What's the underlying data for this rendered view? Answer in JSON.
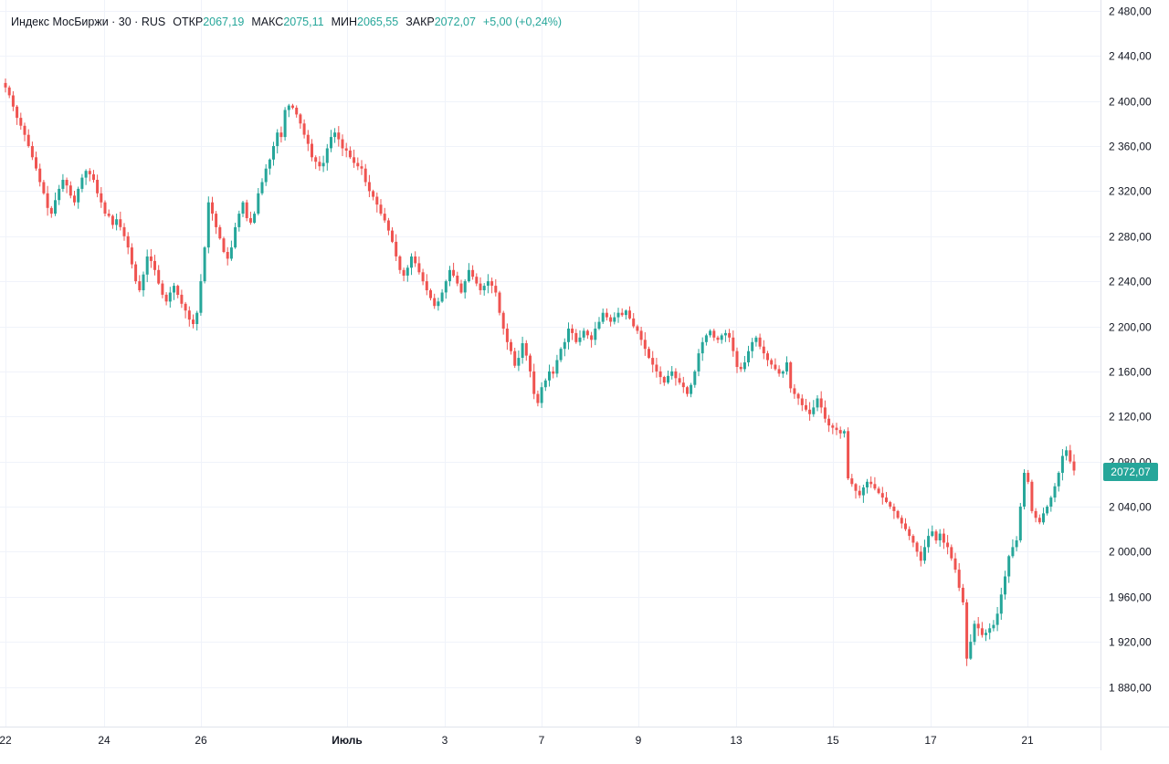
{
  "legend": {
    "symbol": "Индекс МосБиржи · 30 · RUS",
    "open_label": "ОТКР",
    "open_value": "2067,19",
    "high_label": "МАКС",
    "high_value": "2075,11",
    "low_label": "МИН",
    "low_value": "2065,55",
    "close_label": "ЗАКР",
    "close_value": "2072,07",
    "change": "+5,00 (+0,24%)"
  },
  "price_tag": "2072,07",
  "colors": {
    "up": "#26a69a",
    "down": "#ef5350",
    "grid": "#f0f3fa",
    "axis_text": "#131722",
    "axis_line": "#e0e3eb"
  },
  "chart_data": {
    "type": "candlestick",
    "title": "Индекс МосБиржи · 30 · RUS",
    "interval": "30",
    "ylim": [
      1855,
      2490
    ],
    "yticks": [
      "2 480,00",
      "2 440,00",
      "2 400,00",
      "2 360,00",
      "2 320,00",
      "2 280,00",
      "2 240,00",
      "2 200,00",
      "2 160,00",
      "2 120,00",
      "2 080,00",
      "2 040,00",
      "2 000,00",
      "1 960,00",
      "1 920,00",
      "1 880,00"
    ],
    "ytick_values": [
      2480,
      2440,
      2400,
      2360,
      2320,
      2280,
      2240,
      2200,
      2160,
      2120,
      2080,
      2040,
      2000,
      1960,
      1920,
      1880
    ],
    "xticks": [
      "22",
      "24",
      "26",
      "Июль",
      "3",
      "7",
      "9",
      "13",
      "15",
      "17",
      "21"
    ],
    "grid": true,
    "last_price": 2072.07,
    "closes": [
      2412,
      2405,
      2395,
      2385,
      2378,
      2370,
      2360,
      2350,
      2340,
      2328,
      2318,
      2305,
      2300,
      2312,
      2322,
      2330,
      2325,
      2316,
      2310,
      2322,
      2332,
      2338,
      2335,
      2330,
      2318,
      2310,
      2300,
      2298,
      2290,
      2295,
      2288,
      2280,
      2270,
      2255,
      2240,
      2232,
      2246,
      2262,
      2258,
      2250,
      2238,
      2228,
      2222,
      2230,
      2236,
      2228,
      2220,
      2214,
      2206,
      2202,
      2212,
      2240,
      2270,
      2310,
      2300,
      2288,
      2278,
      2266,
      2260,
      2270,
      2288,
      2300,
      2310,
      2296,
      2292,
      2300,
      2318,
      2328,
      2340,
      2348,
      2360,
      2372,
      2368,
      2392,
      2396,
      2394,
      2388,
      2380,
      2370,
      2362,
      2350,
      2346,
      2342,
      2345,
      2358,
      2368,
      2372,
      2366,
      2358,
      2356,
      2350,
      2345,
      2342,
      2340,
      2328,
      2320,
      2315,
      2308,
      2300,
      2294,
      2285,
      2275,
      2262,
      2250,
      2245,
      2252,
      2262,
      2256,
      2248,
      2240,
      2232,
      2225,
      2218,
      2222,
      2230,
      2240,
      2250,
      2245,
      2238,
      2230,
      2240,
      2250,
      2244,
      2238,
      2232,
      2236,
      2240,
      2236,
      2230,
      2212,
      2198,
      2186,
      2178,
      2165,
      2172,
      2185,
      2174,
      2160,
      2140,
      2132,
      2146,
      2152,
      2160,
      2158,
      2170,
      2180,
      2186,
      2198,
      2194,
      2186,
      2190,
      2196,
      2192,
      2188,
      2198,
      2204,
      2212,
      2208,
      2204,
      2208,
      2212,
      2210,
      2214,
      2207,
      2200,
      2196,
      2188,
      2180,
      2172,
      2166,
      2160,
      2155,
      2150,
      2156,
      2160,
      2154,
      2150,
      2146,
      2140,
      2148,
      2160,
      2176,
      2186,
      2192,
      2196,
      2190,
      2188,
      2192,
      2194,
      2190,
      2178,
      2164,
      2162,
      2168,
      2178,
      2186,
      2190,
      2182,
      2176,
      2170,
      2166,
      2162,
      2158,
      2160,
      2168,
      2145,
      2140,
      2136,
      2130,
      2126,
      2122,
      2128,
      2136,
      2128,
      2118,
      2112,
      2110,
      2108,
      2105,
      2107,
      2065,
      2060,
      2054,
      2050,
      2057,
      2062,
      2060,
      2056,
      2052,
      2048,
      2044,
      2040,
      2036,
      2030,
      2025,
      2020,
      2014,
      2008,
      2000,
      1992,
      2004,
      2014,
      2018,
      2010,
      2016,
      2008,
      2004,
      1994,
      1984,
      1968,
      1955,
      1905,
      1920,
      1936,
      1932,
      1926,
      1928,
      1932,
      1935,
      1945,
      1962,
      1978,
      1996,
      2004,
      2010,
      2040,
      2070,
      2062,
      2036,
      2030,
      2026,
      2034,
      2040,
      2048,
      2058,
      2070,
      2085,
      2090,
      2080,
      2072
    ]
  }
}
